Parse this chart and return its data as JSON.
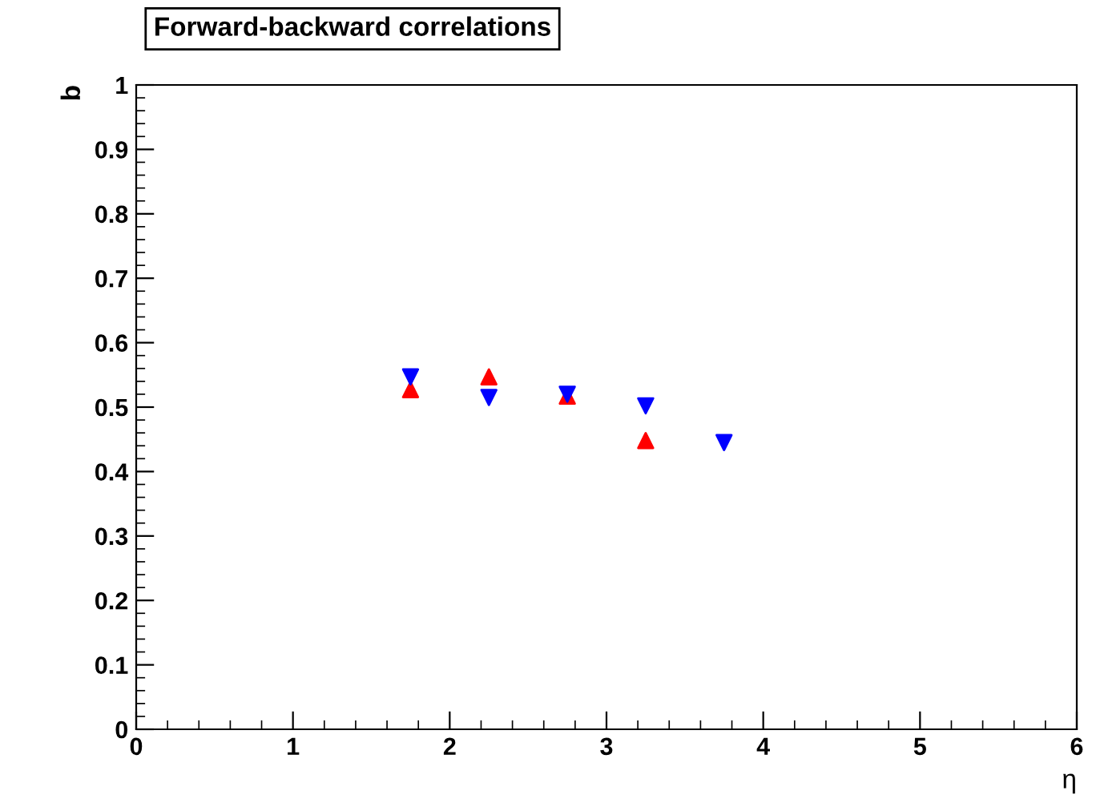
{
  "chart_data": {
    "type": "scatter",
    "title": "Forward-backward correlations",
    "xlabel": "η",
    "ylabel": "b",
    "xlim": [
      0,
      6
    ],
    "xticks": [
      0,
      1,
      2,
      3,
      4,
      5,
      6
    ],
    "ylim": [
      0,
      1
    ],
    "yticks": [
      0,
      0.1,
      0.2,
      0.3,
      0.4,
      0.5,
      0.6,
      0.7,
      0.8,
      0.9,
      1
    ],
    "grid": false,
    "legend": false,
    "series": [
      {
        "color": "#ff0000",
        "marker": "triangle",
        "x": [
          1.75,
          2.25,
          2.75,
          3.25
        ],
        "values": [
          0.527,
          0.547,
          0.517,
          0.448
        ]
      },
      {
        "color": "#0000ff",
        "marker": "triangle",
        "x": [
          1.75,
          2.25,
          2.75,
          3.25,
          3.75
        ],
        "values": [
          0.547,
          0.515,
          0.52,
          0.502,
          0.445
        ]
      }
    ]
  }
}
